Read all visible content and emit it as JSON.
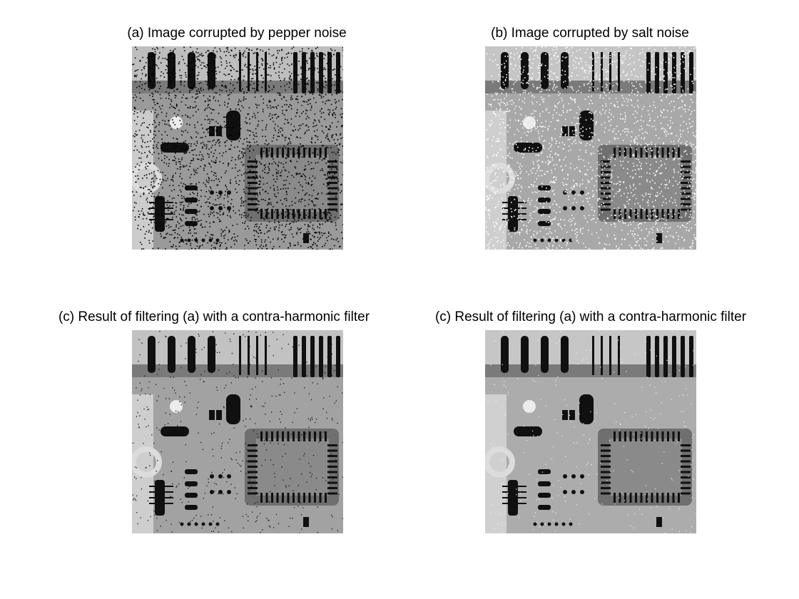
{
  "panels": [
    {
      "label": "(a) Image corrupted by pepper noise",
      "noise": "pepper",
      "image_tone": "#9a9a9a"
    },
    {
      "label": "(b) Image corrupted by salt noise",
      "noise": "salt",
      "image_tone": "#a8a8a8"
    },
    {
      "label": "(c) Result of filtering (a) with a contra-harmonic filter",
      "noise": "light-pepper",
      "image_tone": "#a2a2a2"
    },
    {
      "label": "(c) Result of filtering (a) with a contra-harmonic filter",
      "noise": "clean",
      "image_tone": "#acacac"
    }
  ],
  "colors": {
    "background": "#ffffff",
    "board_dark": "#101010",
    "board_light": "#dcdcdc"
  }
}
